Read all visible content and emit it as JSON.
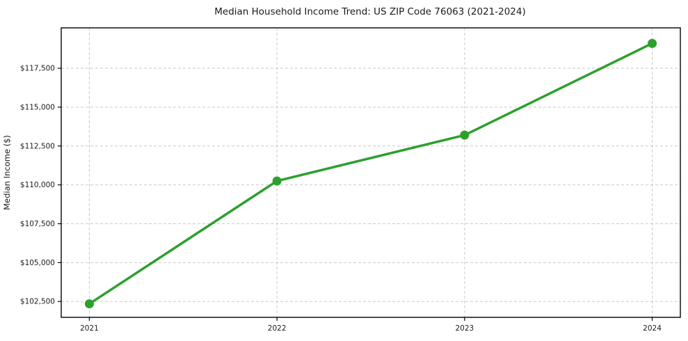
{
  "chart_data": {
    "type": "line",
    "title": "Median Household Income Trend: US ZIP Code 76063 (2021-2024)",
    "xlabel": "",
    "ylabel": "Median Income ($)",
    "x": [
      2021,
      2022,
      2023,
      2024
    ],
    "xtick_labels": [
      "2021",
      "2022",
      "2023",
      "2024"
    ],
    "values": [
      102350,
      110250,
      113200,
      119100
    ],
    "yticks": [
      102500,
      105000,
      107500,
      110000,
      112500,
      115000,
      117500
    ],
    "ytick_labels": [
      "$102,500",
      "$105,000",
      "$107,500",
      "$110,000",
      "$112,500",
      "$115,000",
      "$117,500"
    ],
    "ylim": [
      101480,
      120100
    ],
    "xlim": [
      2020.85,
      2024.15
    ],
    "grid": true,
    "grid_style": "dashed",
    "grid_color": "#c9c9c9",
    "line_color": "#2ca02c",
    "marker_color": "#2ca02c",
    "marker": "circle",
    "spine_color": "#000000",
    "background": "#ffffff",
    "legend_position": "none"
  }
}
